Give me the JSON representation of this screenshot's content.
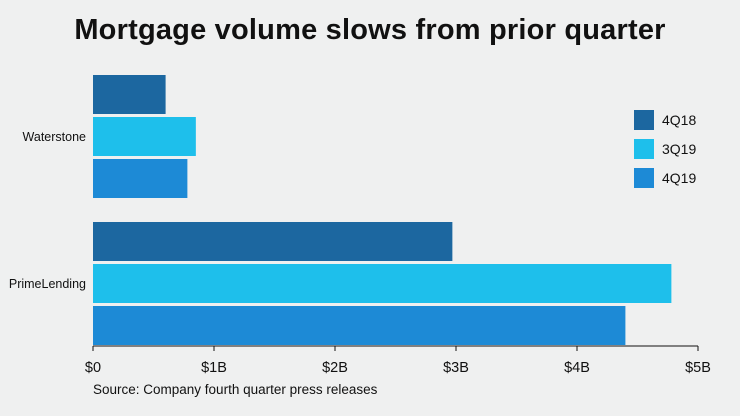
{
  "chart_data": {
    "type": "bar",
    "orientation": "horizontal",
    "title": "Mortgage volume slows from prior quarter",
    "categories": [
      "Waterstone",
      "PrimeLending"
    ],
    "series": [
      {
        "name": "4Q18",
        "color": "#1c67a0",
        "values": [
          0.6,
          2.97
        ]
      },
      {
        "name": "3Q19",
        "color": "#1ebfeb",
        "values": [
          0.85,
          4.78
        ]
      },
      {
        "name": "4Q19",
        "color": "#1d8ad6",
        "values": [
          0.78,
          4.4
        ]
      }
    ],
    "xlim": [
      0,
      5
    ],
    "x_ticks": [
      0,
      1,
      2,
      3,
      4,
      5
    ],
    "x_tick_labels": [
      "$0",
      "$1B",
      "$2B",
      "$3B",
      "$4B",
      "$5B"
    ],
    "unit": "billions of dollars",
    "legend_position": "top-right",
    "grid": false,
    "source": "Source: Company fourth quarter press releases"
  }
}
